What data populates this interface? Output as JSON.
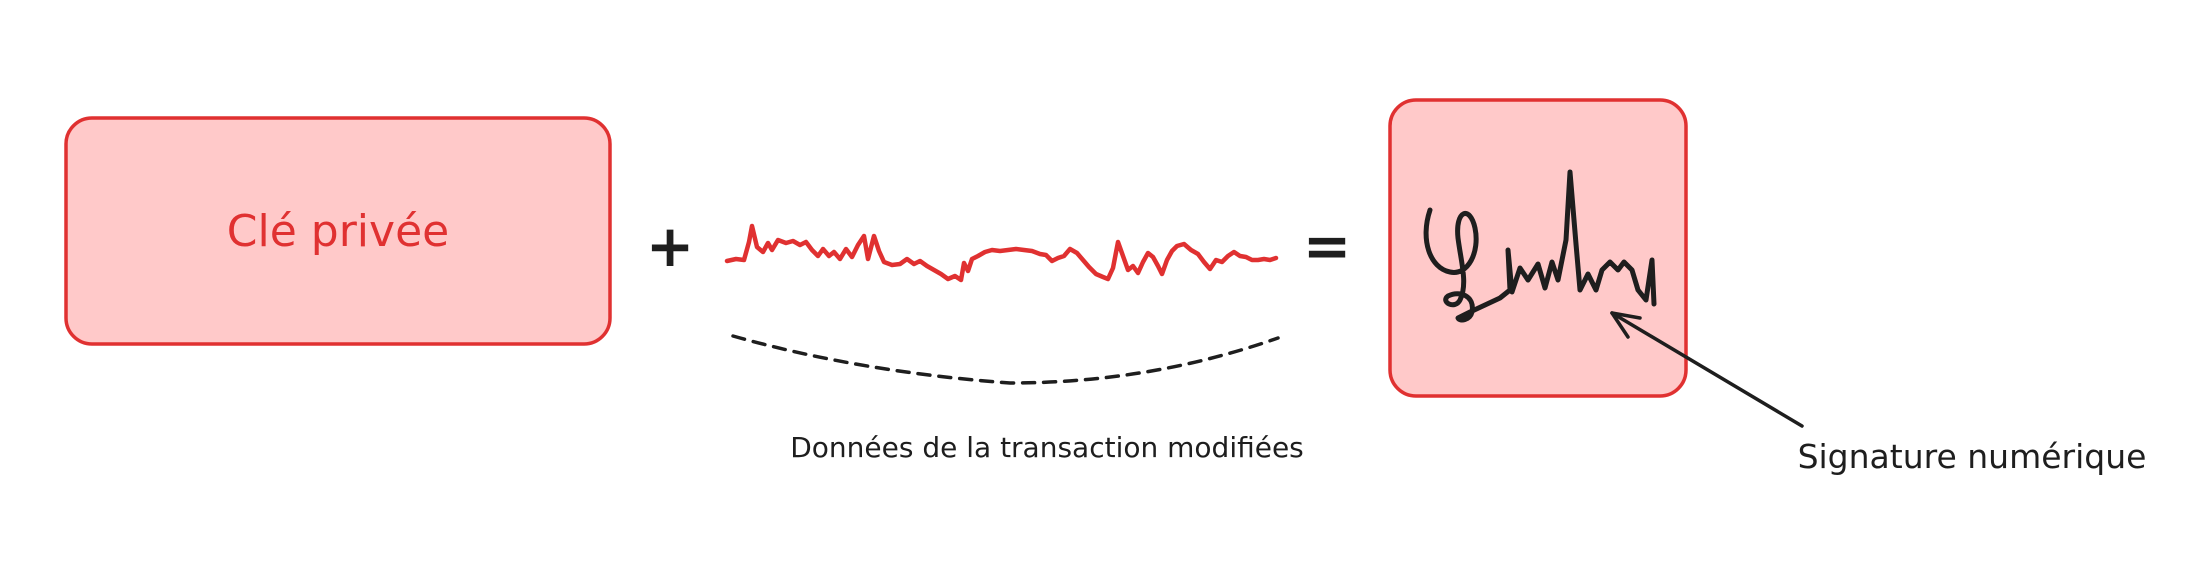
{
  "colors": {
    "box_fill": "#ffc9c9",
    "box_stroke": "#e03131",
    "ink": "#1e1e1e",
    "data_line": "#e03131"
  },
  "private_key": {
    "label": "Clé privée"
  },
  "operators": {
    "plus": "+",
    "equals": "="
  },
  "modified_data": {
    "label": "Données de la transaction modifiées"
  },
  "signature": {
    "label": "Signature numérique"
  }
}
